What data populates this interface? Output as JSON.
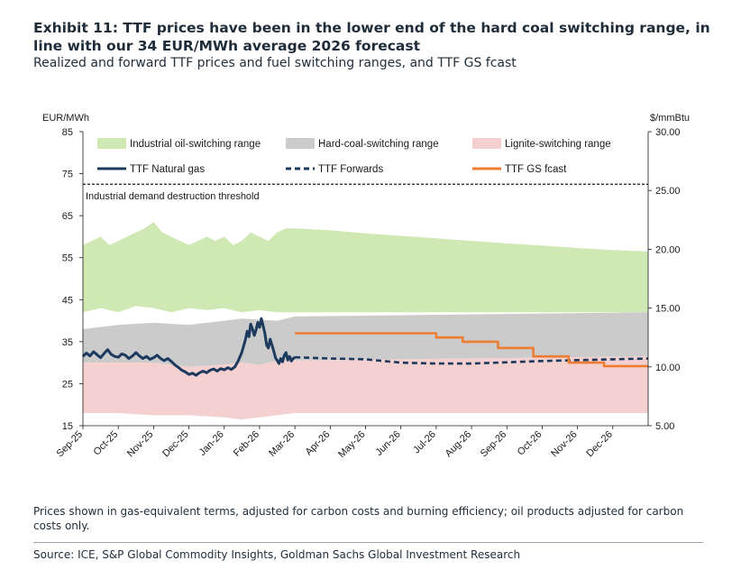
{
  "header": {
    "title": "Exhibit 11: TTF prices have been in the lower end of the hard coal switching range, in line with our 34 EUR/MWh average 2026 forecast",
    "subtitle": "Realized and forward TTF prices and fuel switching ranges, and TTF GS fcast"
  },
  "footer": {
    "note": "Prices shown in gas-equivalent terms, adjusted for carbon costs and burning efficiency; oil products adjusted for carbon costs only.",
    "source": "Source: ICE, S&P Global Commodity Insights, Goldman Sachs Global Investment Research"
  },
  "colors": {
    "oil_band": "#cfe8b4",
    "coal_band": "#cbcbcb",
    "lignite_band": "#f5d0d0",
    "ttf_natural_gas": "#1c3a5e",
    "ttf_forwards": "#1c3a5e",
    "ttf_gs_fcast": "#ed7d31",
    "threshold": "#1a1a1a"
  },
  "chart_data": {
    "type": "area",
    "y_left": {
      "label": "EUR/MWh",
      "min": 15,
      "max": 85,
      "ticks": [
        "85",
        "75",
        "65",
        "55",
        "45",
        "35",
        "25",
        "15"
      ]
    },
    "y_right": {
      "label": "$/mmBtu",
      "min": 5,
      "max": 30,
      "ticks": [
        "30.00",
        "25.00",
        "20.00",
        "15.00",
        "10.00",
        "5.00"
      ]
    },
    "x_ticks": [
      "Sep-25",
      "Oct-25",
      "Nov-25",
      "Dec-25",
      "Jan-26",
      "Feb-26",
      "Mar-26",
      "Apr-26",
      "May-26",
      "Jun-26",
      "Jul-26",
      "Aug-26",
      "Sep-26",
      "Oct-26",
      "Nov-26",
      "Dec-26"
    ],
    "x_range": [
      "Sep-25",
      "Dec-26 end"
    ],
    "grid": false,
    "legend": {
      "placement": "top",
      "items": [
        {
          "label": "Industrial oil-switching range",
          "kind": "band",
          "color": "#cfe8b4"
        },
        {
          "label": "Hard-coal-switching range",
          "kind": "band",
          "color": "#cbcbcb"
        },
        {
          "label": "Lignite-switching range",
          "kind": "band",
          "color": "#f5d0d0"
        },
        {
          "label": "TTF Natural gas",
          "kind": "line",
          "color": "#1c3a5e"
        },
        {
          "label": "TTF Forwards",
          "kind": "dashed",
          "color": "#1c3a5e"
        },
        {
          "label": "TTF GS fcast",
          "kind": "line",
          "color": "#ed7d31"
        }
      ]
    },
    "threshold": {
      "label": "Industrial demand destruction threshold",
      "value": 72.5
    },
    "oil_band": {
      "name": "Industrial oil-switching range",
      "upper": [
        [
          0,
          58
        ],
        [
          0.25,
          59
        ],
        [
          0.5,
          60
        ],
        [
          0.75,
          58
        ],
        [
          1.0,
          59
        ],
        [
          1.25,
          60
        ],
        [
          1.5,
          61
        ],
        [
          1.75,
          62
        ],
        [
          2.0,
          63.5
        ],
        [
          2.25,
          61
        ],
        [
          2.5,
          60
        ],
        [
          2.75,
          59
        ],
        [
          3.0,
          58
        ],
        [
          3.25,
          59
        ],
        [
          3.5,
          60
        ],
        [
          3.75,
          59
        ],
        [
          4.0,
          60
        ],
        [
          4.25,
          58
        ],
        [
          4.5,
          59
        ],
        [
          4.75,
          61
        ],
        [
          5.0,
          60
        ],
        [
          5.25,
          59
        ],
        [
          5.5,
          61
        ],
        [
          5.75,
          62
        ],
        [
          6,
          62
        ],
        [
          7,
          61.5
        ],
        [
          8,
          60.8
        ],
        [
          9,
          60.2
        ],
        [
          10,
          59.6
        ],
        [
          11,
          59
        ],
        [
          12,
          58.4
        ],
        [
          13,
          57.9
        ],
        [
          14,
          57.3
        ],
        [
          15,
          56.8
        ],
        [
          16,
          56.5
        ]
      ],
      "lower": [
        [
          0,
          42
        ],
        [
          0.5,
          43
        ],
        [
          1.0,
          42
        ],
        [
          1.5,
          43.5
        ],
        [
          2.0,
          43
        ],
        [
          2.5,
          42
        ],
        [
          3.0,
          43
        ],
        [
          3.5,
          42.5
        ],
        [
          4.0,
          43
        ],
        [
          4.5,
          42
        ],
        [
          5.0,
          42.5
        ],
        [
          5.5,
          42
        ],
        [
          6,
          42
        ],
        [
          16,
          42
        ]
      ]
    },
    "coal_band": {
      "name": "Hard-coal-switching range",
      "upper": [
        [
          0,
          38
        ],
        [
          1,
          39
        ],
        [
          2,
          39.5
        ],
        [
          3,
          39
        ],
        [
          4,
          40
        ],
        [
          4.5,
          40.5
        ],
        [
          5.5,
          40
        ],
        [
          6,
          41
        ],
        [
          16,
          42
        ]
      ],
      "lower": [
        [
          0,
          30
        ],
        [
          1,
          30
        ],
        [
          2,
          30
        ],
        [
          3,
          29
        ],
        [
          4,
          29.5
        ],
        [
          4.5,
          30
        ],
        [
          5,
          29.5
        ],
        [
          5.5,
          30.5
        ],
        [
          6,
          30.5
        ],
        [
          16,
          31.5
        ]
      ]
    },
    "lignite_band": {
      "name": "Lignite-switching range",
      "upper": [
        [
          0,
          30
        ],
        [
          1,
          30
        ],
        [
          2,
          30
        ],
        [
          3,
          29
        ],
        [
          4,
          29.5
        ],
        [
          4.5,
          30
        ],
        [
          5,
          29.5
        ],
        [
          5.5,
          30.5
        ],
        [
          6,
          30.5
        ],
        [
          16,
          31.5
        ]
      ],
      "lower": [
        [
          0,
          18
        ],
        [
          1,
          18
        ],
        [
          2,
          17.5
        ],
        [
          3,
          17.5
        ],
        [
          4,
          17
        ],
        [
          4.5,
          16.5
        ],
        [
          5,
          17
        ],
        [
          5.5,
          17.5
        ],
        [
          6,
          18
        ],
        [
          16,
          18
        ]
      ]
    },
    "series": [
      {
        "name": "TTF Natural gas",
        "style": "solid",
        "points": [
          [
            0,
            31.5
          ],
          [
            0.1,
            32.3
          ],
          [
            0.2,
            31.6
          ],
          [
            0.3,
            32.6
          ],
          [
            0.4,
            31.9
          ],
          [
            0.5,
            31.2
          ],
          [
            0.6,
            32.2
          ],
          [
            0.7,
            33.1
          ],
          [
            0.8,
            32.0
          ],
          [
            0.9,
            31.5
          ],
          [
            1.0,
            31.3
          ],
          [
            1.1,
            32.1
          ],
          [
            1.2,
            31.8
          ],
          [
            1.3,
            31.0
          ],
          [
            1.4,
            31.6
          ],
          [
            1.5,
            32.4
          ],
          [
            1.6,
            31.6
          ],
          [
            1.7,
            31.0
          ],
          [
            1.8,
            31.5
          ],
          [
            1.9,
            30.8
          ],
          [
            2.0,
            31.2
          ],
          [
            2.1,
            31.8
          ],
          [
            2.2,
            31.0
          ],
          [
            2.3,
            30.5
          ],
          [
            2.4,
            31.0
          ],
          [
            2.5,
            30.3
          ],
          [
            2.6,
            29.5
          ],
          [
            2.7,
            28.9
          ],
          [
            2.8,
            28.2
          ],
          [
            2.9,
            27.8
          ],
          [
            3.0,
            27.2
          ],
          [
            3.1,
            27.5
          ],
          [
            3.2,
            27.0
          ],
          [
            3.3,
            27.6
          ],
          [
            3.4,
            28.0
          ],
          [
            3.5,
            27.6
          ],
          [
            3.6,
            28.2
          ],
          [
            3.7,
            28.5
          ],
          [
            3.8,
            28.0
          ],
          [
            3.9,
            28.6
          ],
          [
            4.0,
            28.3
          ],
          [
            4.1,
            28.8
          ],
          [
            4.2,
            28.4
          ],
          [
            4.3,
            29.0
          ],
          [
            4.4,
            30.5
          ],
          [
            4.5,
            32.5
          ],
          [
            4.6,
            35.5
          ],
          [
            4.65,
            37.5
          ],
          [
            4.7,
            36.2
          ],
          [
            4.75,
            39.2
          ],
          [
            4.8,
            38.0
          ],
          [
            4.85,
            36.5
          ],
          [
            4.9,
            37.8
          ],
          [
            4.95,
            39.6
          ],
          [
            5.0,
            38.4
          ],
          [
            5.05,
            40.5
          ],
          [
            5.1,
            38.8
          ],
          [
            5.15,
            37.0
          ],
          [
            5.2,
            34.2
          ],
          [
            5.25,
            33.5
          ],
          [
            5.3,
            35.6
          ],
          [
            5.35,
            34.2
          ],
          [
            5.4,
            32.8
          ],
          [
            5.45,
            31.2
          ],
          [
            5.5,
            30.5
          ],
          [
            5.55,
            29.8
          ],
          [
            5.6,
            31.0
          ],
          [
            5.65,
            30.2
          ],
          [
            5.7,
            31.8
          ],
          [
            5.75,
            32.4
          ],
          [
            5.8,
            30.6
          ],
          [
            5.85,
            31.5
          ],
          [
            5.9,
            30.4
          ],
          [
            5.95,
            31.0
          ],
          [
            6.0,
            31.3
          ]
        ]
      },
      {
        "name": "TTF Forwards",
        "style": "dashed",
        "points": [
          [
            6.0,
            31.3
          ],
          [
            7,
            31.0
          ],
          [
            8,
            30.8
          ],
          [
            9,
            30.0
          ],
          [
            10,
            29.8
          ],
          [
            11,
            29.8
          ],
          [
            12,
            30.1
          ],
          [
            13,
            30.4
          ],
          [
            14,
            30.6
          ],
          [
            15,
            30.8
          ],
          [
            16,
            31.0
          ]
        ]
      },
      {
        "name": "TTF GS fcast",
        "style": "solid",
        "points": [
          [
            6.0,
            37.0
          ],
          [
            10.0,
            37.0
          ],
          [
            10.0,
            36.0
          ],
          [
            10.75,
            36.0
          ],
          [
            10.75,
            35.0
          ],
          [
            11.75,
            35.0
          ],
          [
            11.75,
            33.5
          ],
          [
            12.75,
            33.5
          ],
          [
            12.75,
            31.5
          ],
          [
            13.75,
            31.5
          ],
          [
            13.75,
            30.0
          ],
          [
            14.75,
            30.0
          ],
          [
            14.75,
            29.2
          ],
          [
            16.0,
            29.2
          ]
        ]
      }
    ]
  }
}
